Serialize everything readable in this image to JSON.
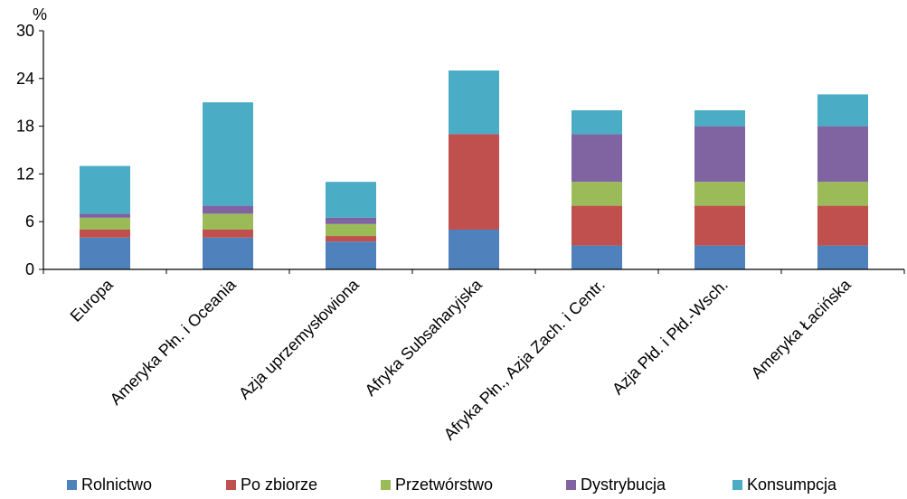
{
  "chart_data": {
    "type": "bar",
    "stacked": true,
    "title": "",
    "unit_label": "%",
    "ylim": [
      0,
      30
    ],
    "yticks": [
      0,
      6,
      12,
      18,
      24,
      30
    ],
    "grid": false,
    "legend_position": "bottom",
    "categories": [
      "Europa",
      "Ameryka Płn. i Oceania",
      "Azja uprzemysłowiona",
      "Afryka Subsaharyjska",
      "Afryka Płn., Azja Zach. i Centr.",
      "Azja Płd. i Płd.-Wsch.",
      "Ameryka Łacińska"
    ],
    "series": [
      {
        "name": "Rolnictwo",
        "color": "#4f81bd",
        "values": [
          4,
          4,
          3.5,
          5,
          3,
          3,
          3
        ]
      },
      {
        "name": "Po zbiorze",
        "color": "#c0504d",
        "values": [
          1,
          1,
          0.7,
          12,
          5,
          5,
          5
        ]
      },
      {
        "name": "Przetwórstwo",
        "color": "#9bbb59",
        "values": [
          1.5,
          2,
          1.5,
          0,
          3,
          3,
          3
        ]
      },
      {
        "name": "Dystrybucja",
        "color": "#8064a2",
        "values": [
          0.5,
          1,
          0.8,
          0,
          6,
          7,
          7
        ]
      },
      {
        "name": "Konsumpcja",
        "color": "#4bacc6",
        "values": [
          6,
          13,
          4.5,
          8,
          3,
          2,
          4
        ]
      }
    ]
  }
}
